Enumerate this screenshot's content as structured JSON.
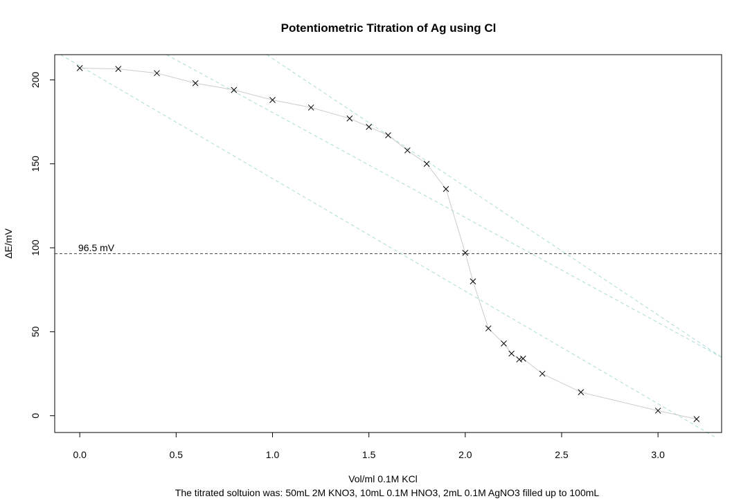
{
  "chart_data": {
    "type": "scatter",
    "title": "Potentiometric Titration of Ag using Cl",
    "xlabel": "Vol/ml 0.1M KCl",
    "subtitle": "The titrated soltuion was: 50mL 2M KNO3, 10mL 0.1M HNO3, 2mL 0.1M AgNO3 filled up to 100mL",
    "ylabel": "ΔE/mV",
    "xlim": [
      -0.13,
      3.33
    ],
    "ylim": [
      -10,
      215
    ],
    "x_ticks": [
      "0.0",
      "0.5",
      "1.0",
      "1.5",
      "2.0",
      "2.5",
      "3.0"
    ],
    "y_ticks": [
      "0",
      "50",
      "100",
      "150",
      "200"
    ],
    "grid": false,
    "series": [
      {
        "marker": "x",
        "line_color": "#cccccc",
        "marker_color": "#000000",
        "x": [
          0.0,
          0.2,
          0.4,
          0.6,
          0.8,
          1.0,
          1.2,
          1.4,
          1.5,
          1.6,
          1.7,
          1.8,
          1.9,
          2.0,
          2.04,
          2.12,
          2.2,
          2.24,
          2.28,
          2.3,
          2.4,
          2.6,
          3.0,
          3.2
        ],
        "y": [
          207,
          206.5,
          204,
          198,
          194,
          188,
          183.5,
          177,
          172,
          167,
          158,
          150,
          135,
          97,
          80,
          52,
          43,
          37,
          33.5,
          34,
          25,
          14,
          3,
          -2
        ]
      }
    ],
    "reference_lines": [
      {
        "kind": "horizontal",
        "y": 96.5,
        "style": "dashed",
        "color": "#555555",
        "label": "96.5 mV"
      },
      {
        "kind": "oblique",
        "x0": -0.1,
        "y0": 215,
        "x1": 3.3,
        "y1": -13,
        "style": "dashed",
        "color": "#a8dcd8"
      },
      {
        "kind": "oblique",
        "x0": 0.45,
        "y0": 215,
        "x1": 3.33,
        "y1": 34.8,
        "style": "dashed",
        "color": "#a8dcd8"
      },
      {
        "kind": "oblique",
        "x0": 0.97,
        "y0": 215,
        "x1": 3.33,
        "y1": 34.8,
        "style": "dashed",
        "color": "#a8dcd8"
      }
    ]
  }
}
